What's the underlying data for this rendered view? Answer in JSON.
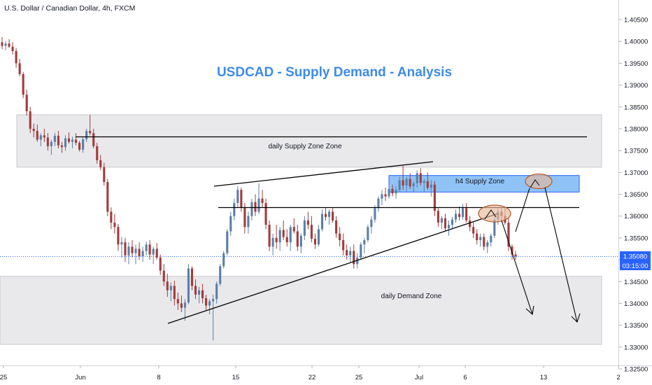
{
  "header": {
    "symbol_title": "U.S. Dollar / Canadian Dollar, 4h, FXCM"
  },
  "colors": {
    "bull": "#5b7fa6",
    "bear": "#a23b3b",
    "zone_fill": "#e9e9ec",
    "zone_border": "#c9c9cd",
    "h4_zone_fill": "#8fc3f5",
    "h4_zone_border": "#2962ff",
    "title": "#3d8be8",
    "price_line": "#2962ff",
    "ellipse_fill": "#e7b99a",
    "ellipse_stroke": "#b35a2c"
  },
  "chart_data": {
    "type": "candlestick",
    "title": "USDCAD - Supply Demand - Analysis",
    "symbol": "U.S. Dollar / Canadian Dollar, 4h, FXCM",
    "y_ticks": [
      "1.40500",
      "1.40000",
      "1.39500",
      "1.39000",
      "1.38500",
      "1.38000",
      "1.37500",
      "1.37000",
      "1.36500",
      "1.36000",
      "1.35500",
      "1.35000",
      "1.34500",
      "1.34000",
      "1.33500",
      "1.33000",
      "1.32500"
    ],
    "ylim": [
      1.324,
      1.4085
    ],
    "x_ticks": [
      "25",
      "Jun",
      "8",
      "15",
      "22",
      "25",
      "Jul",
      "6",
      "13",
      "2"
    ],
    "last_price": "1.35080",
    "countdown": "03:15:00",
    "zones": [
      {
        "name": "daily Supply Zone Zone",
        "low": 1.3712,
        "high": 1.3832
      },
      {
        "name": "h4 Supply Zone",
        "low": 1.3655,
        "high": 1.3693
      },
      {
        "name": "daily Demand Zone",
        "low": 1.3306,
        "high": 1.3462
      }
    ],
    "candles": [
      [
        1.3998,
        1.401,
        1.3982,
        1.399
      ],
      [
        1.399,
        1.4,
        1.398,
        1.3995
      ],
      [
        1.3995,
        1.4005,
        1.3985,
        1.3988
      ],
      [
        1.3988,
        1.3998,
        1.397,
        1.3978
      ],
      [
        1.3978,
        1.3985,
        1.394,
        1.395
      ],
      [
        1.395,
        1.396,
        1.392,
        1.3925
      ],
      [
        1.3925,
        1.393,
        1.387,
        1.3878
      ],
      [
        1.3878,
        1.389,
        1.383,
        1.384
      ],
      [
        1.384,
        1.385,
        1.379,
        1.38
      ],
      [
        1.38,
        1.3812,
        1.378,
        1.3795
      ],
      [
        1.3795,
        1.381,
        1.377,
        1.3775
      ],
      [
        1.3775,
        1.379,
        1.376,
        1.3785
      ],
      [
        1.3785,
        1.38,
        1.377,
        1.378
      ],
      [
        1.378,
        1.379,
        1.375,
        1.376
      ],
      [
        1.376,
        1.3775,
        1.374,
        1.377
      ],
      [
        1.377,
        1.379,
        1.376,
        1.3784
      ],
      [
        1.3784,
        1.3795,
        1.3755,
        1.3762
      ],
      [
        1.3762,
        1.377,
        1.3745,
        1.3758
      ],
      [
        1.3758,
        1.3785,
        1.375,
        1.3778
      ],
      [
        1.3778,
        1.3792,
        1.3766,
        1.377
      ],
      [
        1.377,
        1.3782,
        1.3755,
        1.3775
      ],
      [
        1.3775,
        1.379,
        1.3762,
        1.3768
      ],
      [
        1.3768,
        1.3772,
        1.3748,
        1.3752
      ],
      [
        1.3752,
        1.378,
        1.3745,
        1.3776
      ],
      [
        1.3776,
        1.38,
        1.377,
        1.3795
      ],
      [
        1.3795,
        1.3832,
        1.3785,
        1.379
      ],
      [
        1.379,
        1.38,
        1.3755,
        1.376
      ],
      [
        1.376,
        1.3768,
        1.372,
        1.3728
      ],
      [
        1.3728,
        1.374,
        1.3705,
        1.3712
      ],
      [
        1.3712,
        1.3722,
        1.367,
        1.3678
      ],
      [
        1.3678,
        1.3685,
        1.36,
        1.361
      ],
      [
        1.361,
        1.362,
        1.357,
        1.3585
      ],
      [
        1.3585,
        1.3605,
        1.356,
        1.3575
      ],
      [
        1.3575,
        1.3582,
        1.352,
        1.3535
      ],
      [
        1.3535,
        1.3552,
        1.3505,
        1.354
      ],
      [
        1.354,
        1.355,
        1.3495,
        1.351
      ],
      [
        1.351,
        1.354,
        1.349,
        1.353
      ],
      [
        1.353,
        1.3545,
        1.3505,
        1.3515
      ],
      [
        1.3515,
        1.3535,
        1.349,
        1.3525
      ],
      [
        1.3525,
        1.354,
        1.35,
        1.3508
      ],
      [
        1.3508,
        1.353,
        1.3495,
        1.352
      ],
      [
        1.352,
        1.3542,
        1.351,
        1.3535
      ],
      [
        1.3535,
        1.3545,
        1.35,
        1.3512
      ],
      [
        1.3512,
        1.353,
        1.349,
        1.3525
      ],
      [
        1.3525,
        1.3538,
        1.35,
        1.3505
      ],
      [
        1.3505,
        1.3512,
        1.3465,
        1.3475
      ],
      [
        1.3475,
        1.349,
        1.344,
        1.345
      ],
      [
        1.345,
        1.3468,
        1.3415,
        1.343
      ],
      [
        1.343,
        1.3448,
        1.3405,
        1.344
      ],
      [
        1.344,
        1.3452,
        1.3395,
        1.341
      ],
      [
        1.341,
        1.3425,
        1.3385,
        1.34
      ],
      [
        1.34,
        1.3418,
        1.338,
        1.339
      ],
      [
        1.339,
        1.341,
        1.336,
        1.3402
      ],
      [
        1.3402,
        1.349,
        1.3398,
        1.348
      ],
      [
        1.348,
        1.3485,
        1.343,
        1.344
      ],
      [
        1.344,
        1.3455,
        1.341,
        1.342
      ],
      [
        1.342,
        1.3438,
        1.34,
        1.343
      ],
      [
        1.343,
        1.3445,
        1.34,
        1.3412
      ],
      [
        1.3412,
        1.342,
        1.3385,
        1.3395
      ],
      [
        1.3395,
        1.341,
        1.3375,
        1.3405
      ],
      [
        1.3405,
        1.342,
        1.3315,
        1.341
      ],
      [
        1.341,
        1.345,
        1.34,
        1.3445
      ],
      [
        1.3445,
        1.349,
        1.344,
        1.3485
      ],
      [
        1.3485,
        1.352,
        1.348,
        1.3515
      ],
      [
        1.3515,
        1.357,
        1.351,
        1.3565
      ],
      [
        1.3565,
        1.361,
        1.3555,
        1.36
      ],
      [
        1.36,
        1.364,
        1.359,
        1.363
      ],
      [
        1.363,
        1.3668,
        1.362,
        1.366
      ],
      [
        1.366,
        1.3665,
        1.361,
        1.362
      ],
      [
        1.362,
        1.363,
        1.356,
        1.3575
      ],
      [
        1.3575,
        1.361,
        1.356,
        1.36
      ],
      [
        1.36,
        1.364,
        1.359,
        1.3632
      ],
      [
        1.3632,
        1.365,
        1.36,
        1.361
      ],
      [
        1.361,
        1.3675,
        1.3605,
        1.364
      ],
      [
        1.364,
        1.366,
        1.362,
        1.363
      ],
      [
        1.363,
        1.364,
        1.357,
        1.358
      ],
      [
        1.358,
        1.359,
        1.352,
        1.353
      ],
      [
        1.353,
        1.356,
        1.351,
        1.355
      ],
      [
        1.355,
        1.358,
        1.3525,
        1.354
      ],
      [
        1.354,
        1.3575,
        1.352,
        1.3568
      ],
      [
        1.3568,
        1.359,
        1.3545,
        1.3552
      ],
      [
        1.3552,
        1.357,
        1.353,
        1.354
      ],
      [
        1.354,
        1.358,
        1.352,
        1.3575
      ],
      [
        1.3575,
        1.3595,
        1.356,
        1.3565
      ],
      [
        1.3565,
        1.358,
        1.352,
        1.353
      ],
      [
        1.353,
        1.356,
        1.3515,
        1.3555
      ],
      [
        1.3555,
        1.36,
        1.3545,
        1.359
      ],
      [
        1.359,
        1.361,
        1.357,
        1.358
      ],
      [
        1.358,
        1.36,
        1.354,
        1.3548
      ],
      [
        1.3548,
        1.356,
        1.3525,
        1.3535
      ],
      [
        1.3535,
        1.358,
        1.353,
        1.357
      ],
      [
        1.357,
        1.3615,
        1.3565,
        1.3605
      ],
      [
        1.3605,
        1.362,
        1.359,
        1.3598
      ],
      [
        1.3598,
        1.3615,
        1.358,
        1.361
      ],
      [
        1.361,
        1.362,
        1.3585,
        1.359
      ],
      [
        1.359,
        1.36,
        1.355,
        1.356
      ],
      [
        1.356,
        1.3575,
        1.353,
        1.3545
      ],
      [
        1.3545,
        1.356,
        1.351,
        1.3522
      ],
      [
        1.3522,
        1.3535,
        1.35,
        1.351
      ],
      [
        1.351,
        1.353,
        1.3495,
        1.352
      ],
      [
        1.352,
        1.3535,
        1.348,
        1.349
      ],
      [
        1.349,
        1.3515,
        1.348,
        1.3505
      ],
      [
        1.3505,
        1.354,
        1.35,
        1.3535
      ],
      [
        1.3535,
        1.355,
        1.3515,
        1.3545
      ],
      [
        1.3545,
        1.358,
        1.354,
        1.3575
      ],
      [
        1.3575,
        1.36,
        1.356,
        1.3592
      ],
      [
        1.3592,
        1.3625,
        1.3585,
        1.3618
      ],
      [
        1.3618,
        1.3645,
        1.361,
        1.364
      ],
      [
        1.364,
        1.366,
        1.3625,
        1.365
      ],
      [
        1.365,
        1.3665,
        1.3635,
        1.3645
      ],
      [
        1.3645,
        1.367,
        1.364,
        1.3662
      ],
      [
        1.3662,
        1.3672,
        1.3645,
        1.3652
      ],
      [
        1.3652,
        1.3668,
        1.364,
        1.366
      ],
      [
        1.366,
        1.369,
        1.3655,
        1.3682
      ],
      [
        1.3682,
        1.3715,
        1.366,
        1.367
      ],
      [
        1.367,
        1.369,
        1.3655,
        1.3685
      ],
      [
        1.3685,
        1.3698,
        1.3662,
        1.3668
      ],
      [
        1.3668,
        1.368,
        1.3655,
        1.3675
      ],
      [
        1.3675,
        1.3705,
        1.3665,
        1.3698
      ],
      [
        1.3698,
        1.371,
        1.367,
        1.3676
      ],
      [
        1.3676,
        1.3685,
        1.3655,
        1.368
      ],
      [
        1.368,
        1.37,
        1.366,
        1.3665
      ],
      [
        1.3665,
        1.3682,
        1.3645,
        1.3672
      ],
      [
        1.3672,
        1.368,
        1.36,
        1.3612
      ],
      [
        1.3612,
        1.362,
        1.3575,
        1.3585
      ],
      [
        1.3585,
        1.36,
        1.357,
        1.3595
      ],
      [
        1.3595,
        1.3605,
        1.3565,
        1.3572
      ],
      [
        1.3572,
        1.359,
        1.3555,
        1.358
      ],
      [
        1.358,
        1.3598,
        1.357,
        1.3592
      ],
      [
        1.3592,
        1.3615,
        1.3585,
        1.3605
      ],
      [
        1.3605,
        1.3622,
        1.359,
        1.3598
      ],
      [
        1.3598,
        1.3628,
        1.3592,
        1.3618
      ],
      [
        1.3618,
        1.363,
        1.3585,
        1.359
      ],
      [
        1.359,
        1.36,
        1.3565,
        1.3575
      ],
      [
        1.3575,
        1.3585,
        1.355,
        1.356
      ],
      [
        1.356,
        1.357,
        1.3535,
        1.3545
      ],
      [
        1.3545,
        1.356,
        1.353,
        1.3552
      ],
      [
        1.3552,
        1.356,
        1.3522,
        1.353
      ],
      [
        1.353,
        1.3545,
        1.3515,
        1.354
      ],
      [
        1.354,
        1.356,
        1.353,
        1.3555
      ],
      [
        1.3555,
        1.36,
        1.355,
        1.3592
      ],
      [
        1.3592,
        1.3618,
        1.358,
        1.361
      ],
      [
        1.361,
        1.362,
        1.359,
        1.36
      ],
      [
        1.36,
        1.3618,
        1.358,
        1.3585
      ],
      [
        1.3585,
        1.3595,
        1.352,
        1.353
      ],
      [
        1.353,
        1.3535,
        1.35,
        1.3512
      ],
      [
        1.3512,
        1.352,
        1.35,
        1.3508
      ]
    ]
  },
  "annotations": {
    "supply_label": "daily Supply Zone Zone",
    "h4_label": "h4 Supply Zone",
    "demand_label": "daily Demand Zone"
  }
}
